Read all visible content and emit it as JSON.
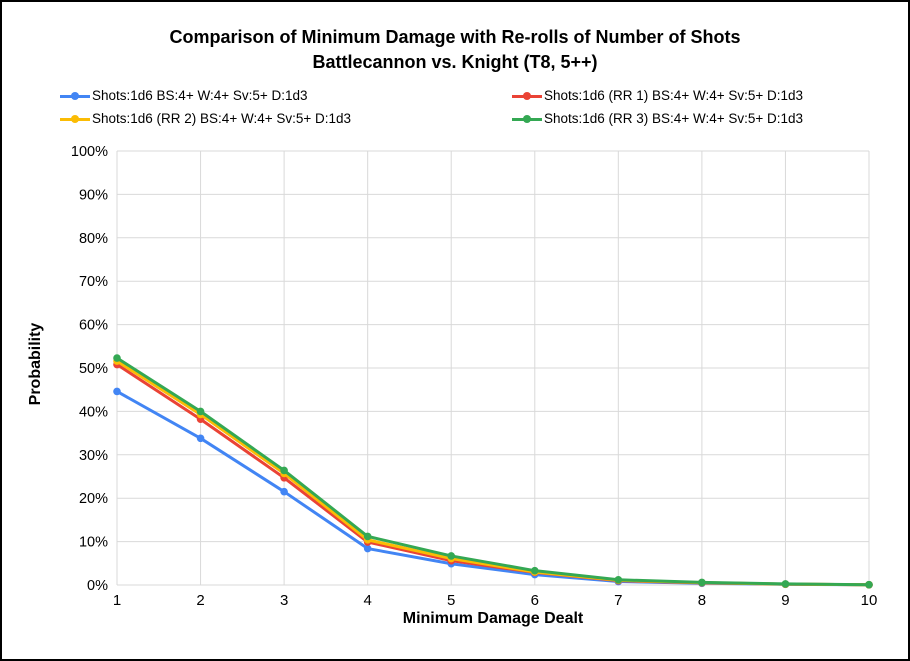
{
  "figure": {
    "title_line1": "Comparison of Minimum Damage with Re-rolls of Number of Shots",
    "title_line2": "Battlecannon vs. Knight (T8, 5++)"
  },
  "chart_data": {
    "type": "line",
    "title": "Comparison of Minimum Damage with Re-rolls of Number of Shots — Battlecannon vs. Knight (T8, 5++)",
    "xlabel": "Minimum Damage Dealt",
    "ylabel": "Probability",
    "x": [
      1,
      2,
      3,
      4,
      5,
      6,
      7,
      8,
      9,
      10
    ],
    "xlim": [
      1,
      10
    ],
    "ylim": [
      0,
      100
    ],
    "ytick_step": 10,
    "ytick_suffix": "%",
    "grid": true,
    "legend_position": "top",
    "series": [
      {
        "name": "Shots:1d6 BS:4+ W:4+ Sv:5+ D:1d3",
        "color": "#4285F4",
        "values": [
          44.6,
          33.8,
          21.5,
          8.4,
          4.9,
          2.4,
          0.8,
          0.4,
          0.15,
          0.05
        ]
      },
      {
        "name": "Shots:1d6 (RR 1) BS:4+ W:4+ Sv:5+ D:1d3",
        "color": "#EA4335",
        "values": [
          50.8,
          38.2,
          24.7,
          9.9,
          5.6,
          2.9,
          1.0,
          0.5,
          0.2,
          0.05
        ]
      },
      {
        "name": "Shots:1d6 (RR 2) BS:4+ W:4+ Sv:5+ D:1d3",
        "color": "#FBBC04",
        "values": [
          51.6,
          39.3,
          25.7,
          10.4,
          6.1,
          3.0,
          1.1,
          0.55,
          0.2,
          0.06
        ]
      },
      {
        "name": "Shots:1d6 (RR 3) BS:4+ W:4+ Sv:5+ D:1d3",
        "color": "#34A853",
        "values": [
          52.3,
          40.0,
          26.4,
          11.2,
          6.7,
          3.3,
          1.2,
          0.6,
          0.25,
          0.07
        ]
      }
    ]
  },
  "colors": {
    "gridline": "#d9d9d9",
    "text": "#000000",
    "background": "#ffffff",
    "border": "#000000"
  }
}
